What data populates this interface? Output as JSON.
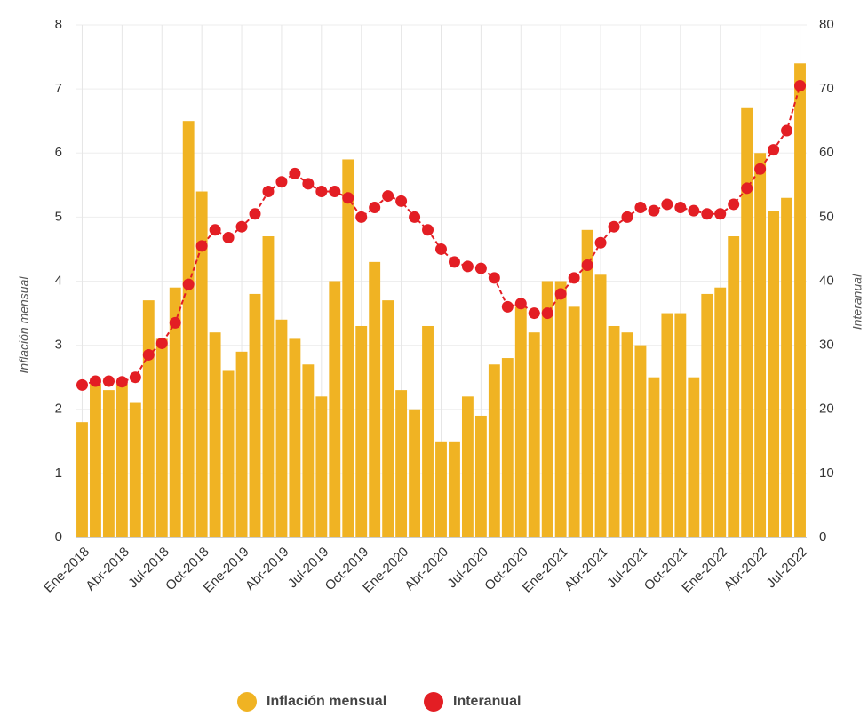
{
  "chart_data": {
    "type": "bar_line",
    "y_label": "Inflación mensual",
    "y2_label": "Interanual",
    "categories": [
      "Ene-2018",
      null,
      null,
      "Abr-2018",
      null,
      null,
      "Jul-2018",
      null,
      null,
      "Oct-2018",
      null,
      null,
      "Ene-2019",
      null,
      null,
      "Abr-2019",
      null,
      null,
      "Jul-2019",
      null,
      null,
      "Oct-2019",
      null,
      null,
      "Ene-2020",
      null,
      null,
      "Abr-2020",
      null,
      null,
      "Jul-2020",
      null,
      null,
      "Oct-2020",
      null,
      null,
      "Ene-2021",
      null,
      null,
      "Abr-2021",
      null,
      null,
      "Jul-2021",
      null,
      null,
      "Oct-2021",
      null,
      null,
      "Ene-2022",
      null,
      null,
      "Abr-2022",
      null,
      null,
      "Jul-2022"
    ],
    "series": [
      {
        "name": "Inflación mensual",
        "color": "#f0b323",
        "kind": "bar",
        "values": [
          1.8,
          2.4,
          2.3,
          2.4,
          2.1,
          3.7,
          3.1,
          3.9,
          6.5,
          5.4,
          3.2,
          2.6,
          2.9,
          3.8,
          4.7,
          3.4,
          3.1,
          2.7,
          2.2,
          4.0,
          5.9,
          3.3,
          4.3,
          3.7,
          2.3,
          2.0,
          3.3,
          1.5,
          1.5,
          2.2,
          1.9,
          2.7,
          2.8,
          3.6,
          3.2,
          4.0,
          4.0,
          3.6,
          4.8,
          4.1,
          3.3,
          3.2,
          3.0,
          2.5,
          3.5,
          3.5,
          2.5,
          3.8,
          3.9,
          4.7,
          6.7,
          6.0,
          5.1,
          5.3,
          7.4
        ]
      },
      {
        "name": "Interanual",
        "color": "#e31e24",
        "kind": "line",
        "axis": "y2",
        "values": [
          23.8,
          24.4,
          24.4,
          24.3,
          25.0,
          28.5,
          30.3,
          33.5,
          39.5,
          45.5,
          48.0,
          46.8,
          48.5,
          50.5,
          54.0,
          55.5,
          56.8,
          55.2,
          54.0,
          54.0,
          53.0,
          50.0,
          51.5,
          53.3,
          52.5,
          50.0,
          48.0,
          45.0,
          43.0,
          42.3,
          42.0,
          40.5,
          36.0,
          36.5,
          35.0,
          35.0,
          38.0,
          40.5,
          42.5,
          46.0,
          48.5,
          50.0,
          51.5,
          51.0,
          52.0,
          51.5,
          51.0,
          50.5,
          50.5,
          52.0,
          54.5,
          57.5,
          60.5,
          63.5,
          70.5
        ]
      }
    ],
    "ylim": [
      0,
      8
    ],
    "yticks": [
      0,
      1,
      2,
      3,
      4,
      5,
      6,
      7,
      8
    ],
    "y2lim": [
      0,
      80
    ],
    "y2ticks": [
      0,
      10,
      20,
      30,
      40,
      50,
      60,
      70,
      80
    ],
    "grid": true,
    "legend": "bottom"
  }
}
